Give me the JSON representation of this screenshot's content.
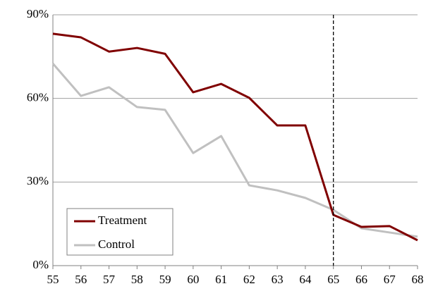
{
  "chart_data": {
    "type": "line",
    "x": [
      55,
      56,
      57,
      58,
      59,
      60,
      61,
      62,
      63,
      64,
      65,
      66,
      67,
      68
    ],
    "series": [
      {
        "name": "Treatment",
        "color": "#800000",
        "values": [
          83.2,
          81.9,
          76.8,
          78.1,
          76.0,
          62.2,
          65.2,
          60.2,
          50.3,
          50.3,
          18.2,
          13.9,
          14.2,
          9.1
        ]
      },
      {
        "name": "Control",
        "color": "#c0c0c0",
        "values": [
          72.5,
          60.9,
          64.0,
          56.9,
          55.9,
          40.4,
          46.5,
          28.8,
          27.0,
          24.3,
          20.0,
          13.4,
          11.9,
          10.4
        ]
      }
    ],
    "xlim": [
      55,
      68
    ],
    "xticks": [
      55,
      56,
      57,
      58,
      59,
      60,
      61,
      62,
      63,
      64,
      65,
      66,
      67,
      68
    ],
    "ylim": [
      0,
      90
    ],
    "yticks": [
      {
        "value": 0,
        "label": "0%"
      },
      {
        "value": 30,
        "label": "30%"
      },
      {
        "value": 60,
        "label": "60%"
      },
      {
        "value": 90,
        "label": "90%"
      }
    ],
    "grid": true,
    "legend": "lower left",
    "vline": 65
  }
}
